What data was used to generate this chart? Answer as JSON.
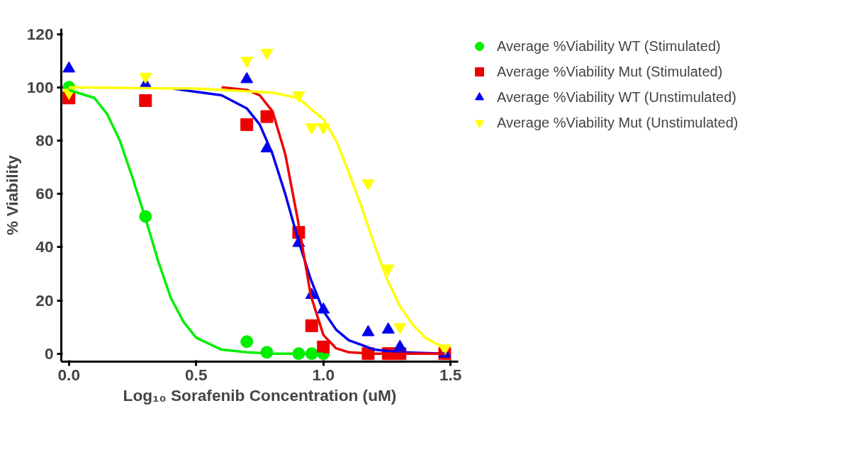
{
  "chart_data": {
    "type": "scatter",
    "xlabel": "Log₁₀ Sorafenib Concentration (uM)",
    "ylabel": "% Viability",
    "x": [
      0,
      0.301,
      0.699,
      0.778,
      0.903,
      0.954,
      1.0,
      1.176,
      1.255,
      1.301,
      1.477
    ],
    "series": [
      {
        "name": "Average %Viability WT (Stimulated)",
        "color": "#00ee00",
        "marker": "circle",
        "values": [
          100,
          51.5,
          4.5,
          0.5,
          0,
          0,
          0,
          null,
          null,
          null,
          null
        ]
      },
      {
        "name": "Average %Viability Mut (Stimulated)",
        "color": "#ee0000",
        "marker": "square",
        "values": [
          96,
          95,
          86,
          89,
          45.5,
          10.5,
          2.5,
          0,
          0,
          0,
          0
        ]
      },
      {
        "name": "Average %Viability WT (Unstimulated)",
        "color": "#0000ee",
        "marker": "triangle",
        "values": [
          107,
          101,
          103,
          77,
          41.5,
          22,
          16.5,
          8,
          9,
          2.5,
          0
        ]
      },
      {
        "name": "Average %Viability Mut (Unstimulated)",
        "color": "#ffff00",
        "marker": "triangle_down",
        "values": [
          98,
          104,
          110,
          113,
          97,
          85,
          85,
          64,
          32,
          10,
          2
        ]
      },
      {
        "type": "line",
        "color": "#00ee00",
        "x": [
          0,
          0.1,
          0.15,
          0.2,
          0.25,
          0.3,
          0.35,
          0.4,
          0.45,
          0.5,
          0.6,
          0.7,
          0.8,
          1.0
        ],
        "values": [
          99,
          96,
          90,
          80,
          66,
          51,
          35,
          21,
          12,
          6,
          1.5,
          0.5,
          0,
          0
        ]
      },
      {
        "type": "line",
        "color": "#0000ee",
        "x": [
          0.41,
          0.6,
          0.7,
          0.75,
          0.8,
          0.85,
          0.9,
          0.95,
          1.0,
          1.05,
          1.1,
          1.2,
          1.3,
          1.477
        ],
        "values": [
          99.5,
          97,
          92,
          86,
          75,
          60,
          43,
          28,
          16,
          9,
          5,
          1.5,
          0.5,
          0
        ]
      },
      {
        "type": "line",
        "color": "#ee0000",
        "x": [
          0.6,
          0.7,
          0.75,
          0.8,
          0.85,
          0.9,
          0.95,
          1.0,
          1.05,
          1.1,
          1.2,
          1.477
        ],
        "values": [
          100,
          99,
          97,
          91,
          75,
          50,
          22,
          7,
          2,
          0.5,
          0,
          0
        ]
      },
      {
        "type": "line",
        "color": "#ffff00",
        "x": [
          0,
          0.5,
          0.8,
          0.9,
          1.0,
          1.05,
          1.1,
          1.15,
          1.2,
          1.25,
          1.3,
          1.35,
          1.4,
          1.477
        ],
        "values": [
          100,
          99.5,
          98,
          96,
          88,
          80,
          68,
          55,
          41,
          28,
          18,
          11,
          6,
          2
        ]
      }
    ],
    "xlim": [
      -0.03,
      1.53
    ],
    "ylim": [
      -3,
      122
    ],
    "xticks": [
      {
        "value": 0,
        "label": "0.0"
      },
      0.5,
      {
        "value": 1,
        "label": "1.0"
      },
      1.5
    ],
    "yticks": [
      0,
      20,
      40,
      60,
      80,
      100,
      120
    ],
    "grid": false,
    "legend": "right",
    "line_style": "solid"
  }
}
